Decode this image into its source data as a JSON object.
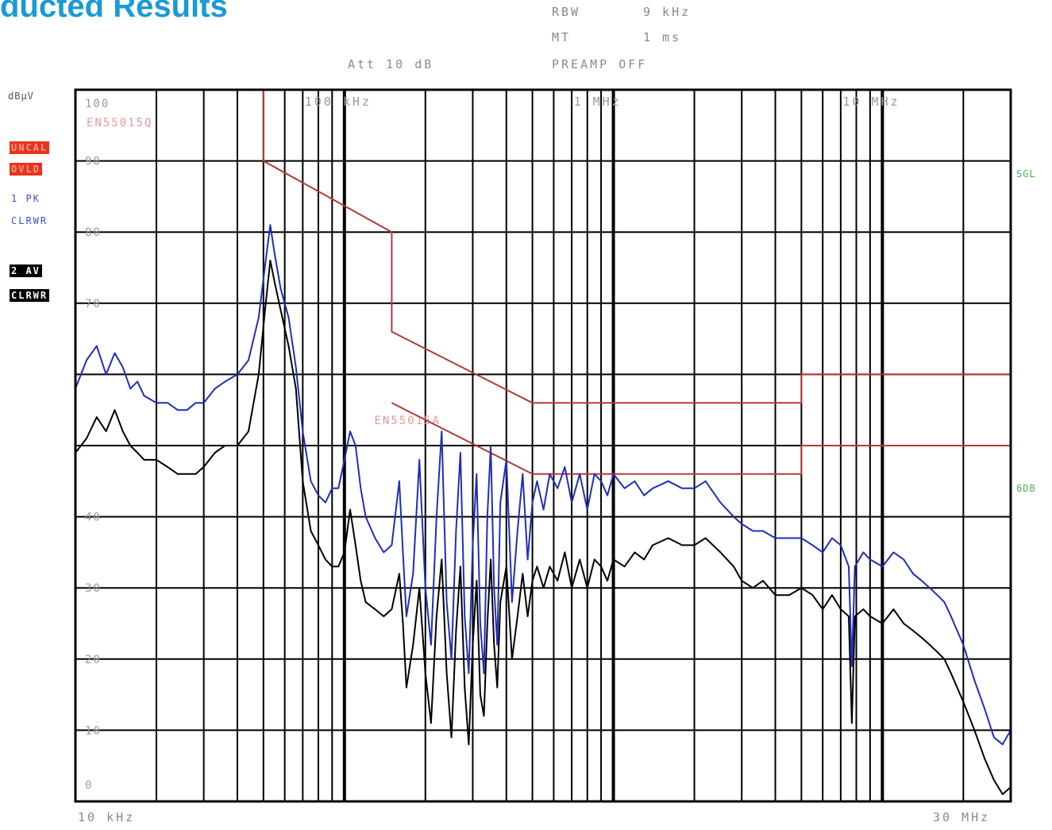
{
  "title": "ducted Results",
  "header": {
    "rbw_label": "RBW",
    "rbw_value": "9 kHz",
    "mt_label": "MT",
    "mt_value": "1 ms",
    "att": "Att 10 dB",
    "preamp": "PREAMP OFF"
  },
  "sidebar": {
    "unit": "dBµV",
    "uncal": "UNCAL",
    "ovld": "OVLD",
    "trace1": "1 PK",
    "trace1_mode": "CLRWR",
    "trace2": "2 AV",
    "trace2_mode": "CLRWR"
  },
  "right_labels": {
    "sgl": "SGL",
    "6db": "6DB"
  },
  "chart_data": {
    "type": "line",
    "xscale": "log",
    "xlim": [
      10000,
      30000000
    ],
    "ylim": [
      0,
      100
    ],
    "ylabel": "dBµV",
    "x_start_label": "10 kHz",
    "x_stop_label": "30 MHz",
    "top_freq_labels": [
      {
        "freq": 100000,
        "label": "100 kHz"
      },
      {
        "freq": 1000000,
        "label": "1 MHz"
      },
      {
        "freq": 10000000,
        "label": "10 MHz"
      }
    ],
    "y_tick_labels": [
      {
        "value": 100,
        "label": "100"
      },
      {
        "value": 90,
        "label": "90"
      },
      {
        "value": 80,
        "label": "80"
      },
      {
        "value": 70,
        "label": "70"
      },
      {
        "value": 40,
        "label": "40"
      },
      {
        "value": 30,
        "label": "30"
      },
      {
        "value": 20,
        "label": "20"
      },
      {
        "value": 10,
        "label": "10"
      },
      {
        "value": 0,
        "label": "0"
      }
    ],
    "limit_lines": [
      {
        "name": "EN55015Q",
        "color": "#b53a3a",
        "points": [
          [
            50000,
            100
          ],
          [
            50000,
            90
          ],
          [
            150000,
            80
          ],
          [
            150000,
            66
          ],
          [
            500000,
            56
          ],
          [
            5000000,
            56
          ],
          [
            5000000,
            60
          ],
          [
            30000000,
            60
          ]
        ]
      },
      {
        "name": "EN55015A",
        "color": "#b53a3a",
        "points": [
          [
            150000,
            56
          ],
          [
            500000,
            46
          ],
          [
            5000000,
            46
          ],
          [
            5000000,
            50
          ],
          [
            30000000,
            50
          ]
        ]
      }
    ],
    "series": [
      {
        "name": "1 PK",
        "color": "#1f2fb8",
        "points": [
          [
            10000,
            58
          ],
          [
            11000,
            62
          ],
          [
            12000,
            64
          ],
          [
            13000,
            60
          ],
          [
            14000,
            63
          ],
          [
            15000,
            61
          ],
          [
            16000,
            58
          ],
          [
            17000,
            59
          ],
          [
            18000,
            57
          ],
          [
            20000,
            56
          ],
          [
            22000,
            56
          ],
          [
            24000,
            55
          ],
          [
            26000,
            55
          ],
          [
            28000,
            56
          ],
          [
            30000,
            56
          ],
          [
            33000,
            58
          ],
          [
            36000,
            59
          ],
          [
            40000,
            60
          ],
          [
            44000,
            62
          ],
          [
            48000,
            68
          ],
          [
            51000,
            76
          ],
          [
            53000,
            81
          ],
          [
            55000,
            77
          ],
          [
            58000,
            72
          ],
          [
            62000,
            68
          ],
          [
            66000,
            61
          ],
          [
            70000,
            52
          ],
          [
            75000,
            45
          ],
          [
            80000,
            43
          ],
          [
            85000,
            42
          ],
          [
            90000,
            44
          ],
          [
            95000,
            44
          ],
          [
            100000,
            48
          ],
          [
            105000,
            52
          ],
          [
            110000,
            50
          ],
          [
            115000,
            44
          ],
          [
            120000,
            40
          ],
          [
            130000,
            37
          ],
          [
            140000,
            35
          ],
          [
            150000,
            36
          ],
          [
            160000,
            45
          ],
          [
            165000,
            35
          ],
          [
            170000,
            26
          ],
          [
            180000,
            32
          ],
          [
            190000,
            48
          ],
          [
            200000,
            30
          ],
          [
            210000,
            22
          ],
          [
            220000,
            40
          ],
          [
            230000,
            52
          ],
          [
            240000,
            28
          ],
          [
            250000,
            20
          ],
          [
            260000,
            38
          ],
          [
            270000,
            49
          ],
          [
            280000,
            26
          ],
          [
            290000,
            18
          ],
          [
            300000,
            36
          ],
          [
            310000,
            46
          ],
          [
            320000,
            25
          ],
          [
            330000,
            18
          ],
          [
            340000,
            40
          ],
          [
            350000,
            50
          ],
          [
            360000,
            30
          ],
          [
            370000,
            22
          ],
          [
            380000,
            42
          ],
          [
            400000,
            48
          ],
          [
            420000,
            28
          ],
          [
            440000,
            38
          ],
          [
            460000,
            46
          ],
          [
            480000,
            34
          ],
          [
            500000,
            42
          ],
          [
            520000,
            45
          ],
          [
            550000,
            41
          ],
          [
            580000,
            46
          ],
          [
            620000,
            44
          ],
          [
            660000,
            47
          ],
          [
            700000,
            42
          ],
          [
            750000,
            46
          ],
          [
            800000,
            41
          ],
          [
            850000,
            46
          ],
          [
            900000,
            45
          ],
          [
            950000,
            43
          ],
          [
            1000000,
            46
          ],
          [
            1100000,
            44
          ],
          [
            1200000,
            45
          ],
          [
            1300000,
            43
          ],
          [
            1400000,
            44
          ],
          [
            1600000,
            45
          ],
          [
            1800000,
            44
          ],
          [
            2000000,
            44
          ],
          [
            2200000,
            45
          ],
          [
            2500000,
            42
          ],
          [
            2800000,
            40
          ],
          [
            3000000,
            39
          ],
          [
            3300000,
            38
          ],
          [
            3600000,
            38
          ],
          [
            4000000,
            37
          ],
          [
            4500000,
            37
          ],
          [
            5000000,
            37
          ],
          [
            5500000,
            36
          ],
          [
            6000000,
            35
          ],
          [
            6500000,
            37
          ],
          [
            7000000,
            36
          ],
          [
            7500000,
            33
          ],
          [
            7700000,
            19
          ],
          [
            7900000,
            33
          ],
          [
            8500000,
            35
          ],
          [
            9000000,
            34
          ],
          [
            10000000,
            33
          ],
          [
            11000000,
            35
          ],
          [
            12000000,
            34
          ],
          [
            13000000,
            32
          ],
          [
            14000000,
            31
          ],
          [
            15000000,
            30
          ],
          [
            16000000,
            29
          ],
          [
            17000000,
            28
          ],
          [
            18000000,
            26
          ],
          [
            20000000,
            22
          ],
          [
            22000000,
            17
          ],
          [
            24000000,
            13
          ],
          [
            26000000,
            9
          ],
          [
            28000000,
            8
          ],
          [
            30000000,
            10
          ]
        ]
      },
      {
        "name": "2 AV",
        "color": "#000000",
        "points": [
          [
            10000,
            49
          ],
          [
            11000,
            51
          ],
          [
            12000,
            54
          ],
          [
            13000,
            52
          ],
          [
            14000,
            55
          ],
          [
            15000,
            52
          ],
          [
            16000,
            50
          ],
          [
            17000,
            49
          ],
          [
            18000,
            48
          ],
          [
            20000,
            48
          ],
          [
            22000,
            47
          ],
          [
            24000,
            46
          ],
          [
            26000,
            46
          ],
          [
            28000,
            46
          ],
          [
            30000,
            47
          ],
          [
            33000,
            49
          ],
          [
            36000,
            50
          ],
          [
            40000,
            50
          ],
          [
            44000,
            52
          ],
          [
            48000,
            60
          ],
          [
            51000,
            70
          ],
          [
            53000,
            76
          ],
          [
            55000,
            73
          ],
          [
            58000,
            69
          ],
          [
            62000,
            64
          ],
          [
            66000,
            58
          ],
          [
            70000,
            45
          ],
          [
            75000,
            38
          ],
          [
            80000,
            36
          ],
          [
            85000,
            34
          ],
          [
            90000,
            33
          ],
          [
            95000,
            33
          ],
          [
            100000,
            35
          ],
          [
            105000,
            41
          ],
          [
            110000,
            36
          ],
          [
            115000,
            31
          ],
          [
            120000,
            28
          ],
          [
            130000,
            27
          ],
          [
            140000,
            26
          ],
          [
            150000,
            27
          ],
          [
            160000,
            32
          ],
          [
            165000,
            25
          ],
          [
            170000,
            16
          ],
          [
            180000,
            22
          ],
          [
            190000,
            30
          ],
          [
            200000,
            18
          ],
          [
            210000,
            11
          ],
          [
            220000,
            26
          ],
          [
            230000,
            34
          ],
          [
            240000,
            18
          ],
          [
            250000,
            9
          ],
          [
            260000,
            24
          ],
          [
            270000,
            33
          ],
          [
            280000,
            16
          ],
          [
            290000,
            8
          ],
          [
            300000,
            22
          ],
          [
            310000,
            31
          ],
          [
            320000,
            15
          ],
          [
            330000,
            12
          ],
          [
            340000,
            25
          ],
          [
            350000,
            34
          ],
          [
            360000,
            22
          ],
          [
            370000,
            16
          ],
          [
            380000,
            28
          ],
          [
            400000,
            33
          ],
          [
            420000,
            20
          ],
          [
            440000,
            26
          ],
          [
            460000,
            32
          ],
          [
            480000,
            26
          ],
          [
            500000,
            31
          ],
          [
            520000,
            33
          ],
          [
            550000,
            30
          ],
          [
            580000,
            33
          ],
          [
            620000,
            31
          ],
          [
            660000,
            35
          ],
          [
            700000,
            30
          ],
          [
            750000,
            34
          ],
          [
            800000,
            30
          ],
          [
            850000,
            34
          ],
          [
            900000,
            33
          ],
          [
            950000,
            31
          ],
          [
            1000000,
            34
          ],
          [
            1100000,
            33
          ],
          [
            1200000,
            35
          ],
          [
            1300000,
            34
          ],
          [
            1400000,
            36
          ],
          [
            1600000,
            37
          ],
          [
            1800000,
            36
          ],
          [
            2000000,
            36
          ],
          [
            2200000,
            37
          ],
          [
            2500000,
            35
          ],
          [
            2800000,
            33
          ],
          [
            3000000,
            31
          ],
          [
            3300000,
            30
          ],
          [
            3600000,
            31
          ],
          [
            4000000,
            29
          ],
          [
            4500000,
            29
          ],
          [
            5000000,
            30
          ],
          [
            5500000,
            29
          ],
          [
            6000000,
            27
          ],
          [
            6500000,
            29
          ],
          [
            7000000,
            27
          ],
          [
            7500000,
            26
          ],
          [
            7700000,
            11
          ],
          [
            7900000,
            26
          ],
          [
            8500000,
            27
          ],
          [
            9000000,
            26
          ],
          [
            10000000,
            25
          ],
          [
            11000000,
            27
          ],
          [
            12000000,
            25
          ],
          [
            13000000,
            24
          ],
          [
            14000000,
            23
          ],
          [
            15000000,
            22
          ],
          [
            16000000,
            21
          ],
          [
            17000000,
            20
          ],
          [
            18000000,
            18
          ],
          [
            20000000,
            14
          ],
          [
            22000000,
            10
          ],
          [
            24000000,
            6
          ],
          [
            26000000,
            3
          ],
          [
            28000000,
            1
          ],
          [
            30000000,
            2
          ]
        ]
      }
    ]
  }
}
